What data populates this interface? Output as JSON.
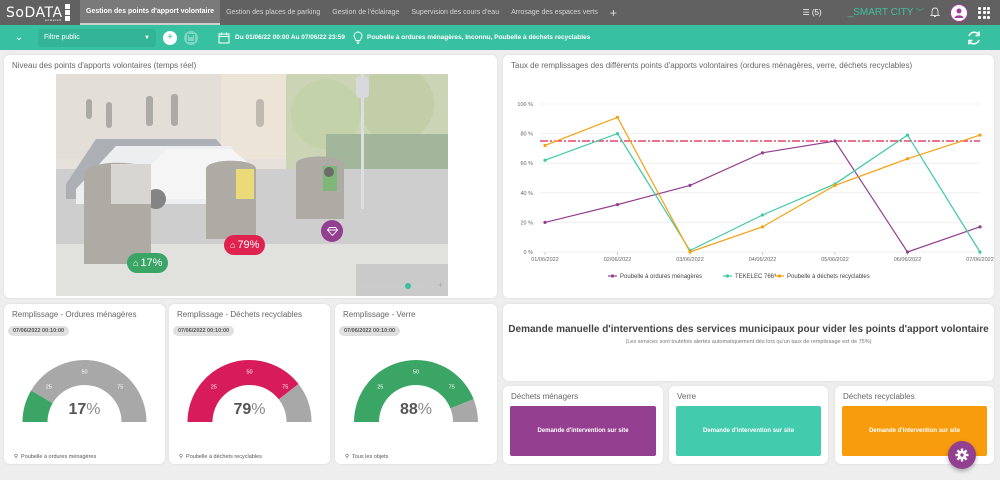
{
  "app": {
    "logo": "SoDATA",
    "logo_badge": [
      "V",
      "I",
      "Z"
    ],
    "logo_sub": "powered"
  },
  "tabs": [
    {
      "label": "Gestion des points d'apport volontaire",
      "active": true
    },
    {
      "label": "Gestion des places de parking"
    },
    {
      "label": "Gestion de l'éclairage"
    },
    {
      "label": "Supervision des cours d'eau"
    },
    {
      "label": "Arrosage des espaces verts"
    }
  ],
  "tab_add": "+",
  "header": {
    "list_count": "(5)",
    "workspace": "_SMART CITY",
    "workspace_chevron": "⌄"
  },
  "filterbar": {
    "filter_select": "Filtre public",
    "date_range": "Du 01/06/22 00:00 Au 07/06/22 23:59",
    "objects": "Poubelle à ordures ménagères, Inconnu, Poubelle à déchets recyclables"
  },
  "photo_card": {
    "title": "Niveau des points d'apports volontaires (temps réel)",
    "markers": [
      {
        "label": "17%",
        "color": "#3aa565"
      },
      {
        "label": "79%",
        "color": "#e0224f"
      },
      {
        "label": "",
        "color": "#933f90",
        "icon": "diamond"
      }
    ]
  },
  "chart_card": {
    "title": "Taux de remplissages des différents points d'apports volontaires (ordures ménagères, verre, déchets recyclables)"
  },
  "chart_data": {
    "type": "line",
    "title": "Taux de remplissages des différents points d'apports volontaires (ordures ménagères, verre, déchets recyclables)",
    "x": [
      "01/06/2022",
      "02/06/2022",
      "03/06/2022",
      "04/06/2022",
      "05/06/2022",
      "06/06/2022",
      "07/06/2022"
    ],
    "yticks": [
      "0 %",
      "20 %",
      "40 %",
      "60 %",
      "80 %",
      "100 %"
    ],
    "ylim": [
      0,
      100
    ],
    "threshold": {
      "value": 75,
      "color": "#e0224f",
      "style": "dash-dot"
    },
    "series": [
      {
        "name": "Poubelle à ordures ménagères",
        "color": "#933f90",
        "values": [
          20,
          32,
          45,
          67,
          75,
          0,
          17
        ]
      },
      {
        "name": "TEKELEC 766*",
        "color": "#3ec9a7",
        "values": [
          62,
          80,
          1,
          25,
          46,
          79,
          0
        ]
      },
      {
        "name": "Poubelle à déchets recyclables",
        "color": "#f5a00f",
        "values": [
          72,
          91,
          0,
          17,
          45,
          63,
          79
        ]
      }
    ],
    "legend_position": "bottom",
    "grid": true
  },
  "gauges": [
    {
      "title": "Remplissage - Ordures ménagères",
      "date": "07/06/2022 00:10:00",
      "value": 17,
      "value_label": "17",
      "unit": "%",
      "color": "#3aa565",
      "footer": "Poubelle à ordures ménagères",
      "ticks": [
        "25",
        "50",
        "75"
      ]
    },
    {
      "title": "Remplissage - Déchets recyclables",
      "date": "07/06/2022 00:10:00",
      "value": 79,
      "value_label": "79",
      "unit": "%",
      "color": "#d81b5a",
      "footer": "Poubelle à déchets recyclables",
      "ticks": [
        "25",
        "50",
        "75"
      ]
    },
    {
      "title": "Remplissage - Verre",
      "date": "07/06/2022 00:10:00",
      "value": 88,
      "value_label": "88",
      "unit": "%",
      "color": "#3aa565",
      "footer": "Tous les objets",
      "ticks": [
        "25",
        "50",
        "75"
      ]
    }
  ],
  "intervention": {
    "title": "Demande manuelle d'interventions des services municipaux pour vider les points d'apport volontaire",
    "subtitle": "(Les services sont toutefois alertés automatiquement dès lors qu'un taux de remplissage est de 75%)"
  },
  "actions": [
    {
      "title": "Déchets ménagers",
      "button": "Demande d'intervention sur site",
      "color": "#953f90"
    },
    {
      "title": "Verre",
      "button": "Demande d'intervention sur site",
      "color": "#43cbad"
    },
    {
      "title": "Déchets recyclables",
      "button": "Demande d'intervention sur site",
      "color": "#f89c0c"
    }
  ]
}
